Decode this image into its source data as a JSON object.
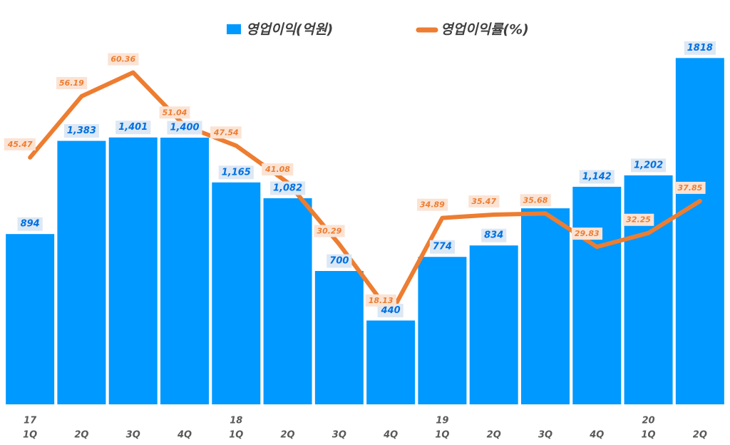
{
  "chart_data": {
    "type": "bar-line",
    "categories": [
      "1Q",
      "2Q",
      "3Q",
      "4Q",
      "1Q",
      "2Q",
      "3Q",
      "4Q",
      "1Q",
      "2Q",
      "3Q",
      "4Q",
      "1Q",
      "2Q"
    ],
    "category_groups": [
      "17",
      null,
      null,
      null,
      "18",
      null,
      null,
      null,
      "19",
      null,
      null,
      null,
      "20",
      null
    ],
    "ylim": [
      0,
      2100
    ],
    "y2lim": [
      2.25,
      72.3
    ],
    "legend": "top",
    "series": [
      {
        "name": "영업이익(억원)",
        "type": "bar",
        "color": "#0099ff",
        "values": [
          894,
          1383,
          1401,
          1400,
          1165,
          1082,
          700,
          440,
          774,
          834,
          1029,
          1142,
          1202,
          1818
        ],
        "value_labels": [
          "894",
          "1,383",
          "1,401",
          "1,400",
          "1,165",
          "1,082",
          "700",
          "440",
          "774",
          "834",
          null,
          "1,142",
          "1,202",
          "1818"
        ]
      },
      {
        "name": "영업이익률(%)",
        "type": "line",
        "axis": "y2",
        "color": "#ed7d31",
        "values": [
          45.47,
          56.19,
          60.36,
          51.04,
          47.54,
          41.08,
          30.29,
          18.13,
          34.89,
          35.47,
          35.68,
          29.83,
          32.25,
          37.85
        ]
      }
    ]
  }
}
